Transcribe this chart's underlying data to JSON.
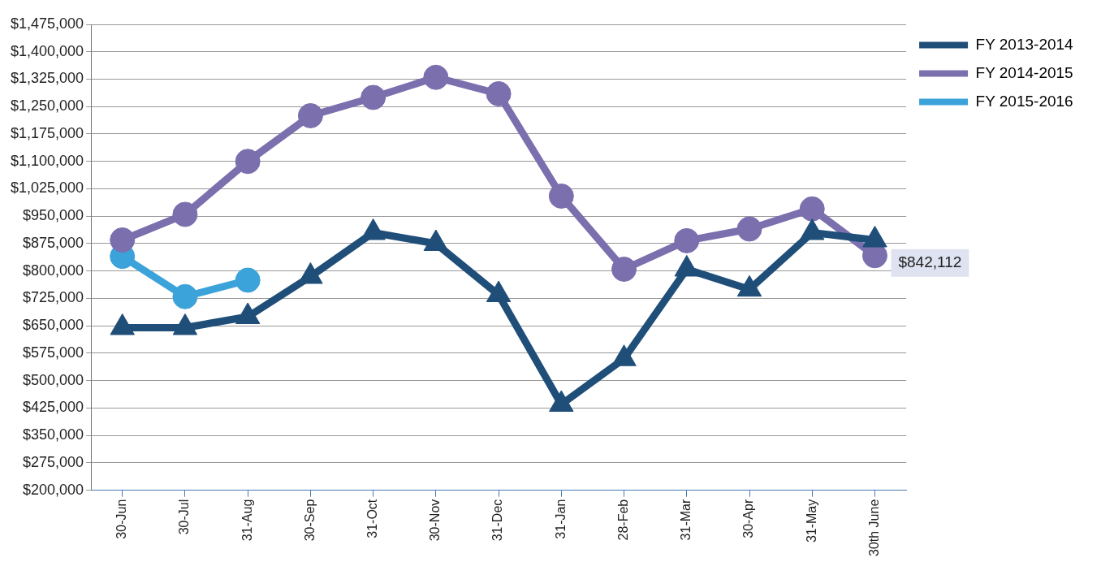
{
  "chart_data": {
    "type": "line",
    "categories": [
      "30-Jun",
      "30-Jul",
      "31-Aug",
      "30-Sep",
      "31-Oct",
      "30-Nov",
      "31-Dec",
      "31-Jan",
      "28-Feb",
      "31-Mar",
      "30-Apr",
      "31-May",
      "30th June"
    ],
    "series": [
      {
        "name": "FY 2013-2014",
        "color": "#1f4e79",
        "marker": "triangle",
        "values": [
          645000,
          645000,
          675000,
          785000,
          905000,
          875000,
          735000,
          435000,
          560000,
          805000,
          750000,
          905000,
          885000
        ]
      },
      {
        "name": "FY 2014-2015",
        "color": "#7b6fae",
        "marker": "circle",
        "values": [
          885000,
          955000,
          1100000,
          1225000,
          1275000,
          1330000,
          1285000,
          1005000,
          805000,
          883000,
          915000,
          970000,
          842112
        ],
        "value_labels": [
          null,
          null,
          null,
          null,
          null,
          null,
          null,
          null,
          null,
          null,
          null,
          null,
          "$842,112"
        ]
      },
      {
        "name": "FY 2015-2016",
        "color": "#3ba3d9",
        "marker": "circle",
        "values": [
          840000,
          730000,
          775000,
          null,
          null,
          null,
          null,
          null,
          null,
          null,
          null,
          null,
          null
        ]
      }
    ],
    "ylim": [
      200000,
      1475000
    ],
    "yticks": [
      {
        "value": 200000,
        "label": "$200,000"
      },
      {
        "value": 275000,
        "label": "$275,000"
      },
      {
        "value": 350000,
        "label": "$350,000"
      },
      {
        "value": 425000,
        "label": "$425,000"
      },
      {
        "value": 500000,
        "label": "$500,000"
      },
      {
        "value": 575000,
        "label": "$575,000"
      },
      {
        "value": 650000,
        "label": "$650,000"
      },
      {
        "value": 725000,
        "label": "$725,000"
      },
      {
        "value": 800000,
        "label": "$800,000"
      },
      {
        "value": 875000,
        "label": "$875,000"
      },
      {
        "value": 950000,
        "label": "$950,000"
      },
      {
        "value": 1025000,
        "label": "$1,025,000"
      },
      {
        "value": 1100000,
        "label": "$1,100,000"
      },
      {
        "value": 1175000,
        "label": "$1,175,000"
      },
      {
        "value": 1250000,
        "label": "$1,250,000"
      },
      {
        "value": 1325000,
        "label": "$1,325,000"
      },
      {
        "value": 1400000,
        "label": "$1,400,000"
      },
      {
        "value": 1475000,
        "label": "$1,475,000"
      }
    ],
    "grid": "y",
    "legend": "top right",
    "line_style": "solid"
  }
}
